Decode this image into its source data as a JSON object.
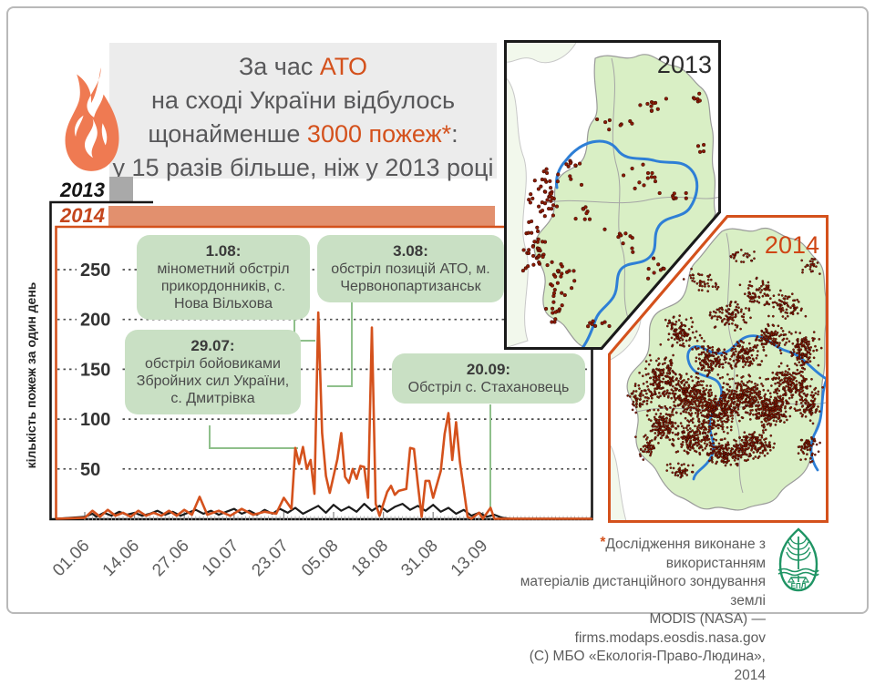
{
  "accent_color": "#d4511c",
  "header": {
    "title_lines": [
      [
        {
          "t": "За час ",
          "a": false
        },
        {
          "t": "АТО",
          "a": true
        }
      ],
      [
        {
          "t": "на сході України відбулось",
          "a": false
        }
      ],
      [
        {
          "t": "щонайменше ",
          "a": false
        },
        {
          "t": "3000 пожеж*",
          "a": true
        },
        {
          "t": ":",
          "a": false
        }
      ],
      [
        {
          "t": "у 15 разів більше, ніж у 2013 році",
          "a": false
        }
      ]
    ]
  },
  "bars": {
    "label_2013": "2013",
    "label_2014": "2014",
    "color_2013": "#a9a9a9",
    "color_2014": "#e2906e"
  },
  "chart_data": {
    "type": "line",
    "ylabel": "кількість пожеж за один день",
    "yticks": [
      50,
      100,
      150,
      200,
      250
    ],
    "ylim": [
      0,
      260
    ],
    "x_major_labels": [
      "01.06",
      "14.06",
      "27.06",
      "10.07",
      "23.07",
      "05.08",
      "18.08",
      "31.08",
      "13.09"
    ],
    "x_days_per_label": 13,
    "grid": "dashed-horizontal",
    "series": [
      {
        "name": "2013",
        "color": "#1b1b1b",
        "points": [
          [
            0,
            2
          ],
          [
            2,
            5
          ],
          [
            3,
            2
          ],
          [
            5,
            6
          ],
          [
            7,
            3
          ],
          [
            9,
            7
          ],
          [
            11,
            4
          ],
          [
            13,
            6
          ],
          [
            15,
            3
          ],
          [
            17,
            5
          ],
          [
            19,
            8
          ],
          [
            21,
            4
          ],
          [
            23,
            7
          ],
          [
            25,
            3
          ],
          [
            27,
            6
          ],
          [
            29,
            9
          ],
          [
            31,
            5
          ],
          [
            33,
            8
          ],
          [
            35,
            4
          ],
          [
            37,
            7
          ],
          [
            39,
            10
          ],
          [
            41,
            5
          ],
          [
            43,
            8
          ],
          [
            45,
            4
          ],
          [
            47,
            9
          ],
          [
            49,
            5
          ],
          [
            51,
            10
          ],
          [
            53,
            6
          ],
          [
            55,
            11
          ],
          [
            57,
            5
          ],
          [
            59,
            9
          ],
          [
            61,
            13
          ],
          [
            63,
            6
          ],
          [
            65,
            14
          ],
          [
            67,
            8
          ],
          [
            69,
            12
          ],
          [
            71,
            7
          ],
          [
            73,
            15
          ],
          [
            75,
            8
          ],
          [
            77,
            13
          ],
          [
            79,
            7
          ],
          [
            81,
            12
          ],
          [
            83,
            15
          ],
          [
            85,
            9
          ],
          [
            87,
            13
          ],
          [
            89,
            8
          ],
          [
            91,
            14
          ],
          [
            93,
            7
          ],
          [
            95,
            11
          ],
          [
            97,
            5
          ],
          [
            99,
            9
          ],
          [
            101,
            3
          ],
          [
            103,
            6
          ],
          [
            105,
            2
          ],
          [
            107,
            4
          ],
          [
            109,
            1
          ],
          [
            111,
            0
          ],
          [
            133,
            0
          ]
        ]
      },
      {
        "name": "2014",
        "color": "#d4511c",
        "points": [
          [
            0,
            1
          ],
          [
            2,
            8
          ],
          [
            4,
            2
          ],
          [
            6,
            9
          ],
          [
            8,
            3
          ],
          [
            10,
            6
          ],
          [
            12,
            2
          ],
          [
            14,
            8
          ],
          [
            16,
            3
          ],
          [
            18,
            6
          ],
          [
            20,
            3
          ],
          [
            22,
            8
          ],
          [
            24,
            3
          ],
          [
            26,
            9
          ],
          [
            28,
            4
          ],
          [
            30,
            22
          ],
          [
            32,
            4
          ],
          [
            35,
            8
          ],
          [
            38,
            3
          ],
          [
            41,
            10
          ],
          [
            44,
            4
          ],
          [
            47,
            7
          ],
          [
            50,
            5
          ],
          [
            52,
            21
          ],
          [
            54,
            10
          ],
          [
            55,
            71
          ],
          [
            56,
            55
          ],
          [
            57,
            72
          ],
          [
            58,
            50
          ],
          [
            59,
            59
          ],
          [
            60,
            25
          ],
          [
            61,
            207
          ],
          [
            62,
            86
          ],
          [
            63,
            43
          ],
          [
            64,
            26
          ],
          [
            66,
            60
          ],
          [
            67,
            86
          ],
          [
            68,
            42
          ],
          [
            69,
            36
          ],
          [
            70,
            50
          ],
          [
            71,
            40
          ],
          [
            72,
            53
          ],
          [
            73,
            52
          ],
          [
            74,
            21
          ],
          [
            75,
            192
          ],
          [
            76,
            15
          ],
          [
            77,
            3
          ],
          [
            79,
            27
          ],
          [
            80,
            33
          ],
          [
            81,
            24
          ],
          [
            82,
            28
          ],
          [
            84,
            30
          ],
          [
            85,
            71
          ],
          [
            86,
            70
          ],
          [
            87,
            35
          ],
          [
            88,
            2
          ],
          [
            89,
            38
          ],
          [
            90,
            38
          ],
          [
            91,
            21
          ],
          [
            93,
            48
          ],
          [
            94,
            85
          ],
          [
            95,
            106
          ],
          [
            96,
            59
          ],
          [
            97,
            97
          ],
          [
            98,
            57
          ],
          [
            99,
            30
          ],
          [
            100,
            2
          ],
          [
            101,
            0
          ],
          [
            103,
            6
          ],
          [
            104,
            0
          ],
          [
            106,
            11
          ],
          [
            107,
            0
          ],
          [
            120,
            0
          ],
          [
            133,
            0
          ]
        ]
      }
    ],
    "annotations": [
      {
        "date": "1.08:",
        "text": "мінометний обстріл прикордонників, с. Нова Вільхова"
      },
      {
        "date": "3.08:",
        "text": "обстріл позицій АТО, м. Червонопартизанськ"
      },
      {
        "date": "29.07:",
        "text": "обстріл бойовиками Збройних сил України, с. Дмитрівка"
      },
      {
        "date": "20.09:",
        "text": "Обстріл с. Стахановець"
      }
    ]
  },
  "maps": [
    {
      "label": "2013",
      "label_color": "#2b2b2b",
      "frame_color": "#1a1a1a",
      "dot_count": 200
    },
    {
      "label": "2014",
      "label_color": "#cf4615",
      "frame_color": "#d4511c",
      "dot_count": 3000
    }
  ],
  "map_style": {
    "region_fill": "#d9efc5",
    "context_fill": "#f2f8ec",
    "river_color": "#2e7fd6",
    "dot_color": "#8a1a04"
  },
  "footer": {
    "star": "*",
    "lines": [
      "Дослідження виконане з використанням",
      "матеріалів дистанційного зондування землі",
      "MODIS (NASA) — firms.modaps.eosdis.nasa.gov",
      "(С) МБО «Екологія-Право-Людина», 2014"
    ],
    "logo_text": "ЕПЛ"
  }
}
